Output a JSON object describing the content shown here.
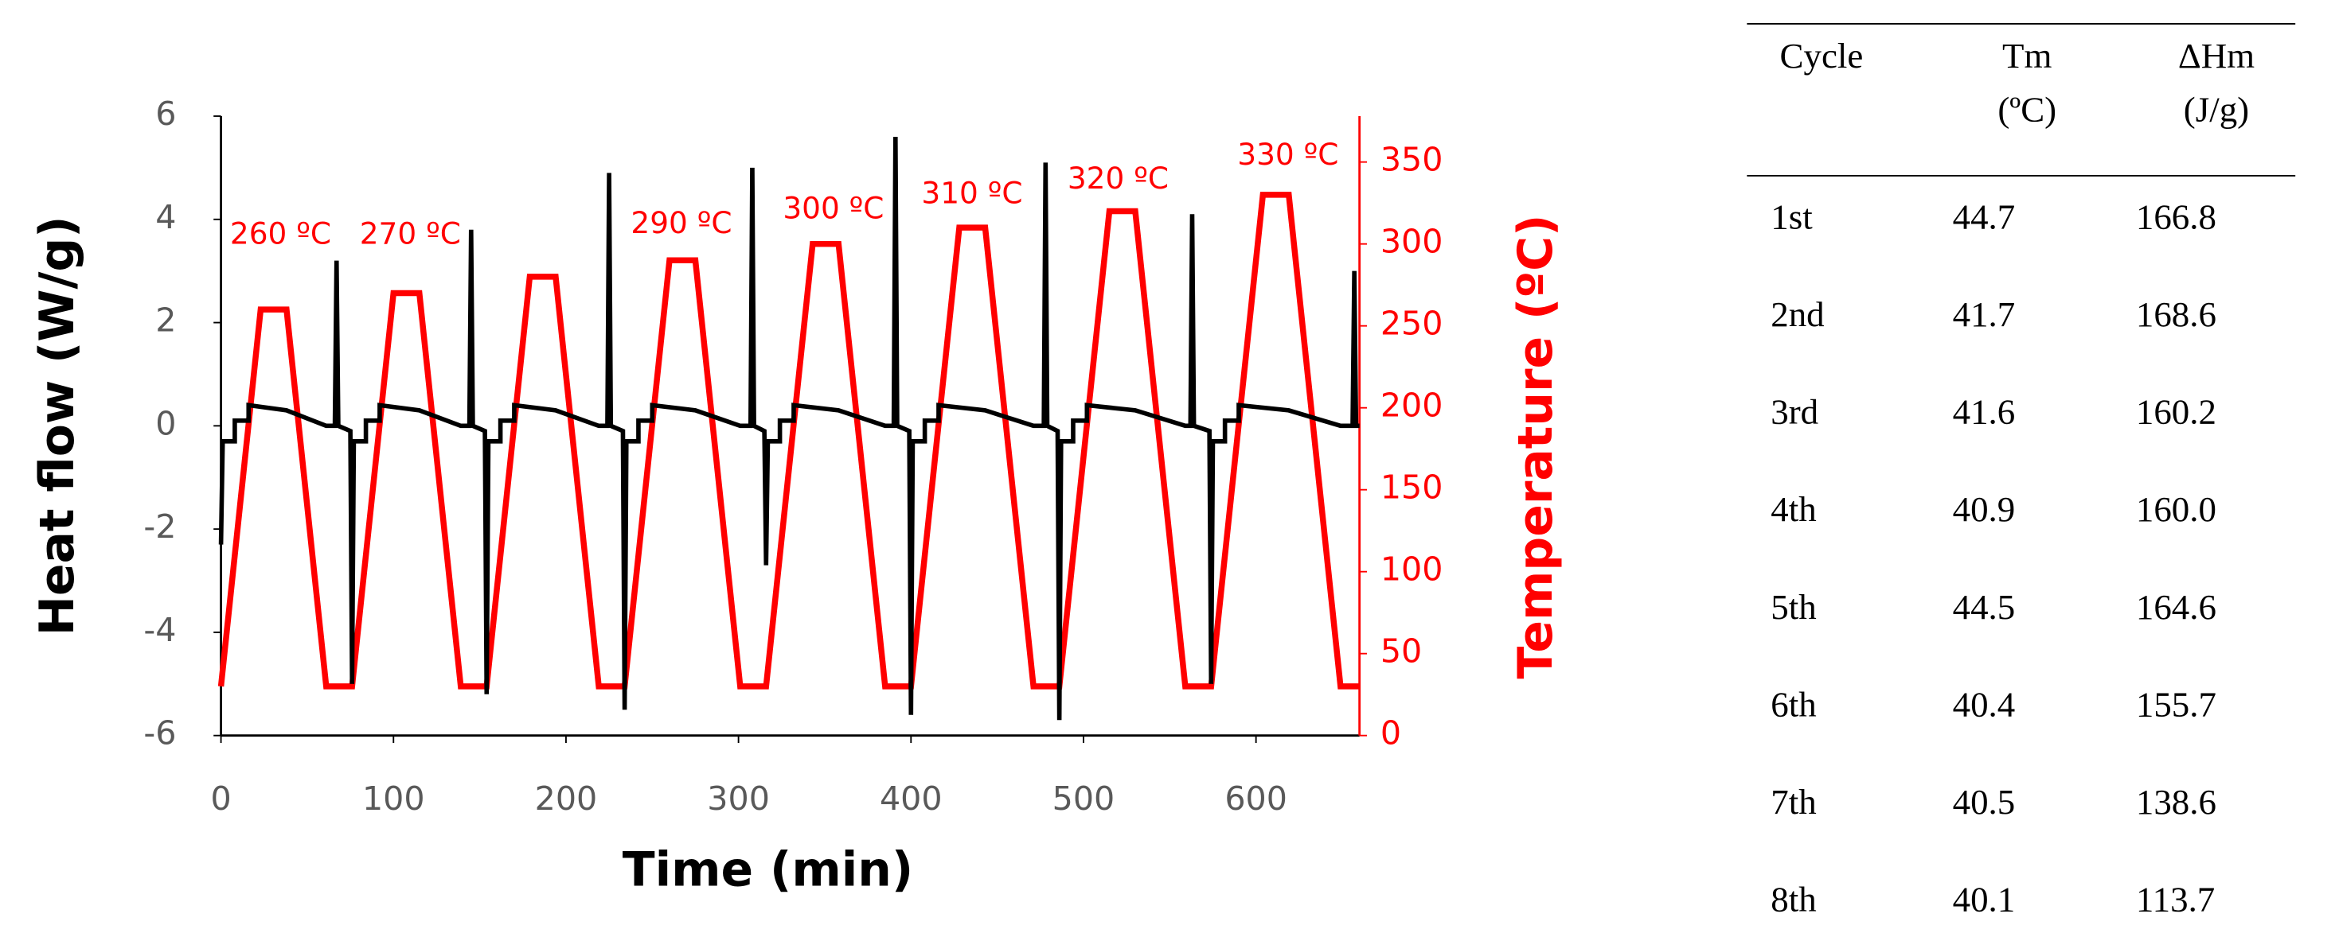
{
  "chart_data": {
    "type": "line",
    "xlabel": "Time (min)",
    "ylabel": "Heat flow (W/g)",
    "y2label": "Temperature (ºC)",
    "xlim": [
      0,
      660
    ],
    "xticks": [
      0,
      100,
      200,
      300,
      400,
      500,
      600
    ],
    "ylim": [
      -6,
      6
    ],
    "yticks": [
      -6,
      -4,
      -2,
      0,
      2,
      4,
      6
    ],
    "y2lim": [
      0,
      378
    ],
    "y2ticks": [
      0,
      50,
      100,
      150,
      200,
      250,
      300,
      350
    ],
    "y2color": "#ff0000",
    "annotations": [
      "260 ºC",
      "270 ºC",
      "290 ºC",
      "300 ºC",
      "310 ºC",
      "320 ºC",
      "330 ºC"
    ],
    "series": [
      {
        "color": "#ff0000",
        "axis": "y2",
        "x": [
          0,
          23,
          38,
          61,
          76,
          100,
          115,
          139,
          154,
          179,
          194,
          219,
          234,
          260,
          275,
          301,
          316,
          343,
          358,
          385,
          400,
          428,
          443,
          471,
          486,
          515,
          530,
          559,
          574,
          604,
          619,
          649,
          660
        ],
        "values": [
          30,
          260,
          260,
          30,
          30,
          270,
          270,
          30,
          30,
          280,
          280,
          30,
          30,
          290,
          290,
          30,
          30,
          300,
          300,
          30,
          30,
          310,
          310,
          30,
          30,
          320,
          320,
          30,
          30,
          330,
          330,
          30,
          30
        ]
      },
      {
        "color": "#000000",
        "x": [
          0,
          1,
          8,
          8,
          16,
          16,
          38,
          61,
          66,
          67,
          68,
          75,
          76,
          77,
          84,
          84,
          92,
          92,
          115,
          139,
          144,
          145,
          146,
          153,
          154,
          155,
          162,
          162,
          170,
          170,
          194,
          219,
          224,
          225,
          226,
          233,
          234,
          235,
          242,
          242,
          250,
          250,
          275,
          301,
          307,
          308,
          309,
          315,
          316,
          317,
          324,
          324,
          332,
          332,
          358,
          385,
          390,
          391,
          392,
          399,
          400,
          401,
          408,
          408,
          416,
          416,
          443,
          471,
          477,
          478,
          479,
          485,
          486,
          487,
          494,
          494,
          502,
          502,
          530,
          559,
          562,
          563,
          564,
          573,
          574,
          575,
          582,
          582,
          590,
          590,
          619,
          649,
          656,
          657,
          658,
          660
        ],
        "values": [
          -2.3,
          -0.3,
          -0.3,
          0.1,
          0.1,
          0.4,
          0.3,
          0.0,
          0.0,
          3.2,
          0.0,
          -0.1,
          -5.0,
          -0.3,
          -0.3,
          0.1,
          0.1,
          0.4,
          0.3,
          0.0,
          0.0,
          3.8,
          0.0,
          -0.1,
          -5.2,
          -0.3,
          -0.3,
          0.1,
          0.1,
          0.4,
          0.3,
          0.0,
          0.0,
          4.9,
          0.0,
          -0.1,
          -5.5,
          -0.3,
          -0.3,
          0.1,
          0.1,
          0.4,
          0.3,
          0.0,
          0.0,
          5.0,
          0.0,
          -0.1,
          -2.7,
          -0.3,
          -0.3,
          0.1,
          0.1,
          0.4,
          0.3,
          0.0,
          0.0,
          5.6,
          0.0,
          -0.1,
          -5.6,
          -0.3,
          -0.3,
          0.1,
          0.1,
          0.4,
          0.3,
          0.0,
          0.0,
          5.1,
          0.0,
          -0.1,
          -5.7,
          -0.3,
          -0.3,
          0.1,
          0.1,
          0.4,
          0.3,
          0.0,
          0.0,
          4.1,
          0.0,
          -0.1,
          -5.0,
          -0.3,
          -0.3,
          0.1,
          0.1,
          0.4,
          0.3,
          0.0,
          0.0,
          3.0,
          0.0,
          0.0
        ]
      }
    ]
  },
  "table": {
    "header": [
      [
        "Cycle"
      ],
      [
        "Tm",
        "(ºC)"
      ],
      [
        "ΔHm",
        "(J/g)"
      ]
    ],
    "rows": [
      [
        "1st",
        "44.7",
        "166.8"
      ],
      [
        "2nd",
        "41.7",
        "168.6"
      ],
      [
        "3rd",
        "41.6",
        "160.2"
      ],
      [
        "4th",
        "40.9",
        "160.0"
      ],
      [
        "5th",
        "44.5",
        "164.6"
      ],
      [
        "6th",
        "40.4",
        "155.7"
      ],
      [
        "7th",
        "40.5",
        "138.6"
      ],
      [
        "8th",
        "40.1",
        "113.7"
      ]
    ]
  }
}
